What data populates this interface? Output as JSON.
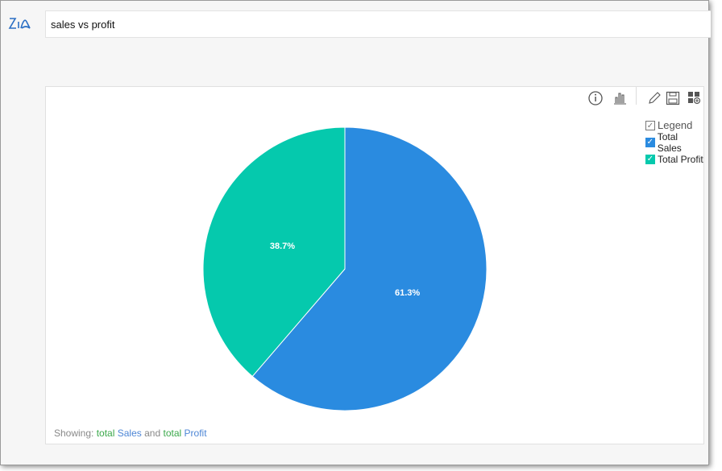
{
  "search": {
    "query": "sales vs profit"
  },
  "toolbar": {
    "icons": [
      "info-icon",
      "chart-type-icon",
      "edit-icon",
      "save-icon",
      "add-to-dashboard-icon"
    ]
  },
  "legend": {
    "title": "Legend",
    "items": [
      {
        "label": "Total Sales",
        "color": "#2a8be0"
      },
      {
        "label": "Total Profit",
        "color": "#05c9ad"
      }
    ]
  },
  "footer": {
    "prefix": "Showing:",
    "w1": "total",
    "w2": "Sales",
    "w3": "and",
    "w4": "total",
    "w5": "Profit"
  },
  "chart_data": {
    "type": "pie",
    "slices": [
      {
        "name": "Total Sales",
        "value": 61.3,
        "label": "61.3%",
        "color": "#2a8be0"
      },
      {
        "name": "Total Profit",
        "value": 38.7,
        "label": "38.7%",
        "color": "#05c9ad"
      }
    ]
  }
}
